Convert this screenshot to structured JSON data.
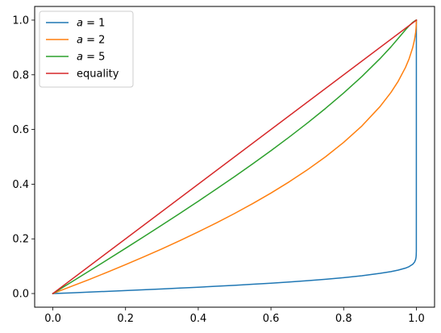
{
  "chart_data": {
    "type": "line",
    "title": "",
    "xlabel": "",
    "ylabel": "",
    "xlim": [
      -0.05,
      1.05
    ],
    "ylim": [
      -0.05,
      1.05
    ],
    "xticks": [
      0.0,
      0.2,
      0.4,
      0.6,
      0.8,
      1.0
    ],
    "xtick_labels": [
      "0.0",
      "0.2",
      "0.4",
      "0.6",
      "0.8",
      "1.0"
    ],
    "yticks": [
      0.0,
      0.2,
      0.4,
      0.6,
      0.8,
      1.0
    ],
    "ytick_labels": [
      "0.0",
      "0.2",
      "0.4",
      "0.6",
      "0.8",
      "1.0"
    ],
    "grid": false,
    "legend_position": "top-left",
    "series": [
      {
        "name": "a = 1",
        "label_var": "a",
        "label_rest": " = 1",
        "color": "#1f77b4",
        "x": [
          0,
          0.05,
          0.1,
          0.15,
          0.2,
          0.25,
          0.3,
          0.35,
          0.4,
          0.45,
          0.5,
          0.55,
          0.6,
          0.65,
          0.7,
          0.75,
          0.8,
          0.85,
          0.9,
          0.93,
          0.95,
          0.97,
          0.98,
          0.99,
          0.995,
          0.998,
          0.999,
          0.9995,
          0.9999,
          1.0
        ],
        "y": [
          0,
          0.0025,
          0.0052,
          0.008,
          0.0108,
          0.0137,
          0.0167,
          0.0199,
          0.0231,
          0.0265,
          0.0301,
          0.0339,
          0.0379,
          0.0422,
          0.0469,
          0.0521,
          0.0581,
          0.0651,
          0.0737,
          0.0802,
          0.0857,
          0.093,
          0.0985,
          0.1071,
          0.115,
          0.1246,
          0.1317,
          0.1388,
          0.1553,
          1.0
        ]
      },
      {
        "name": "a = 2",
        "label_var": "a",
        "label_rest": " = 2",
        "color": "#ff7f0e",
        "x": [
          0,
          0.05,
          0.1,
          0.15,
          0.2,
          0.25,
          0.3,
          0.35,
          0.4,
          0.45,
          0.5,
          0.55,
          0.6,
          0.65,
          0.7,
          0.75,
          0.8,
          0.85,
          0.9,
          0.93,
          0.95,
          0.97,
          0.98,
          0.99,
          0.995,
          0.998,
          0.999,
          0.9999,
          1.0
        ],
        "y": [
          0,
          0.0256,
          0.0513,
          0.0782,
          0.1056,
          0.134,
          0.1633,
          0.1937,
          0.2254,
          0.2584,
          0.2929,
          0.3292,
          0.3675,
          0.4084,
          0.4523,
          0.5,
          0.5528,
          0.6127,
          0.6838,
          0.7354,
          0.7764,
          0.8268,
          0.8586,
          0.9,
          0.9293,
          0.9553,
          0.9684,
          0.99,
          1.0
        ]
      },
      {
        "name": "a = 5",
        "label_var": "a",
        "label_rest": " = 5",
        "color": "#2ca02c",
        "x": [
          0,
          0.05,
          0.1,
          0.15,
          0.2,
          0.25,
          0.3,
          0.35,
          0.4,
          0.45,
          0.5,
          0.55,
          0.6,
          0.65,
          0.7,
          0.75,
          0.8,
          0.85,
          0.9,
          0.93,
          0.95,
          0.97,
          0.98,
          0.99,
          0.995,
          0.998,
          1.0
        ],
        "y": [
          0,
          0.041,
          0.0822,
          0.1237,
          0.1655,
          0.2077,
          0.2504,
          0.2937,
          0.3376,
          0.3823,
          0.4279,
          0.4746,
          0.5226,
          0.5721,
          0.6234,
          0.677,
          0.7336,
          0.7937,
          0.8592,
          0.902,
          0.933,
          0.9645,
          0.9791,
          0.9919,
          0.9965,
          0.9989,
          1.0
        ]
      },
      {
        "name": "equality",
        "color": "#d62728",
        "x": [
          0,
          1
        ],
        "y": [
          0,
          1
        ]
      }
    ]
  }
}
